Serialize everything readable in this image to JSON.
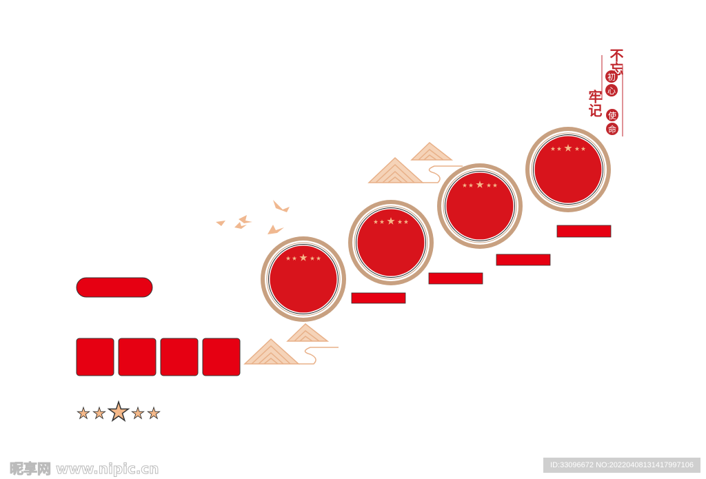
{
  "slogan": {
    "big_1": "不忘",
    "small_1": [
      "初",
      "心"
    ],
    "big_2": "牢记",
    "small_2": [
      "使",
      "命"
    ]
  },
  "watermark": "昵享网 www.nipic.cn",
  "image_id": "ID:33096672 NO:20220408131417997106",
  "colors": {
    "red": "#d8141c",
    "gold": "#c09070",
    "star": "#f5b98a",
    "accent": "#e8b088"
  }
}
